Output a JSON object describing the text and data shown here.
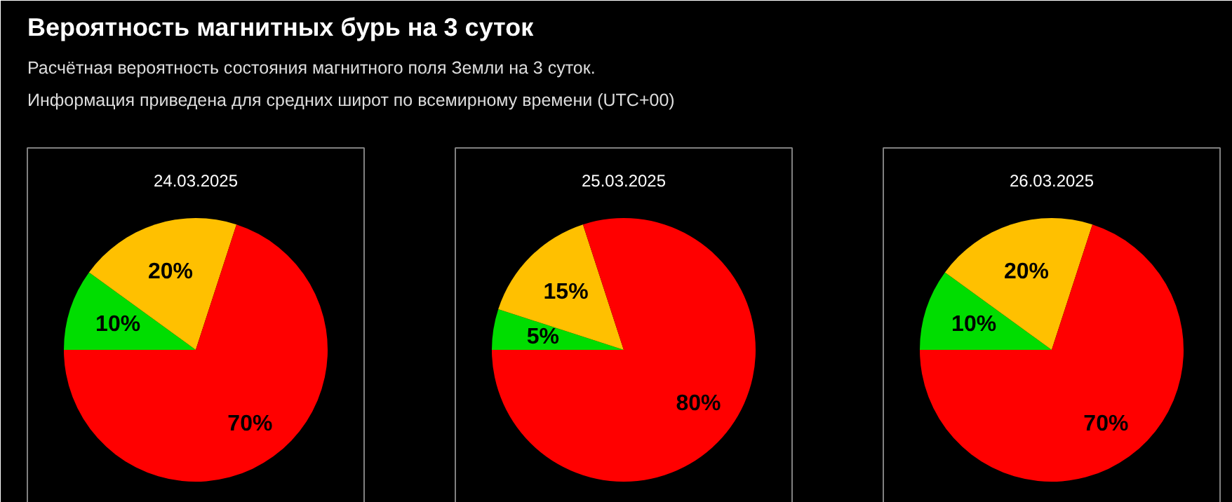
{
  "chart_data": [
    {
      "type": "other",
      "title": "Вероятность магнитных бурь на 3 суток",
      "subtitle": "Расчётная вероятность состояния магнитного поля Земли на 3 суток.\nИнформация приведена для средних широт по всемирному времени (UTC+00)"
    },
    {
      "type": "pie",
      "title": "24.03.2025",
      "categories": [
        null,
        null,
        null
      ],
      "values": [
        10,
        20,
        70
      ],
      "colors": [
        "#00dd00",
        "#ffc000",
        "#ff0000"
      ],
      "value_labels": [
        "10%",
        "20%",
        "70%"
      ]
    },
    {
      "type": "pie",
      "title": "25.03.2025",
      "categories": [
        null,
        null,
        null
      ],
      "values": [
        5,
        15,
        80
      ],
      "colors": [
        "#00dd00",
        "#ffc000",
        "#ff0000"
      ],
      "value_labels": [
        "5%",
        "15%",
        "80%"
      ]
    },
    {
      "type": "pie",
      "title": "26.03.2025",
      "categories": [
        null,
        null,
        null
      ],
      "values": [
        10,
        20,
        70
      ],
      "colors": [
        "#00dd00",
        "#ffc000",
        "#ff0000"
      ],
      "value_labels": [
        "10%",
        "20%",
        "70%"
      ]
    }
  ]
}
